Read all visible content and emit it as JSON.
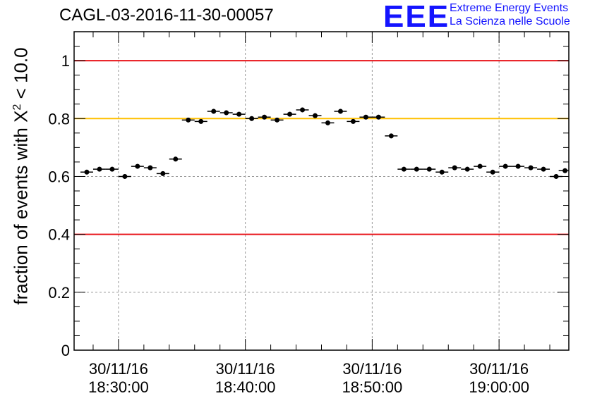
{
  "title": "CAGL-03-2016-11-30-00057",
  "logo": {
    "mark": "EEE",
    "line1": "Extreme Energy Events",
    "line2": "La Scienza nelle Scuole",
    "color": "#1414ff"
  },
  "axis": {
    "ylabel_prefix": "fraction of events with X",
    "ylabel_sup": "2",
    "ylabel_suffix": " < 10.0",
    "y_ticks": [
      "0",
      "0.2",
      "0.4",
      "0.6",
      "0.8",
      "1"
    ],
    "x_ticks": [
      {
        "date": "30/11/16",
        "time": "18:30:00"
      },
      {
        "date": "30/11/16",
        "time": "18:40:00"
      },
      {
        "date": "30/11/16",
        "time": "18:50:00"
      },
      {
        "date": "30/11/16",
        "time": "19:00:00"
      }
    ]
  },
  "colors": {
    "limit_red": "#e8141a",
    "limit_yellow": "#ffc000",
    "points": "#000000"
  },
  "chart_data": {
    "type": "scatter",
    "x_unit": "minutes since 18:30:00",
    "xlim": [
      -3.5,
      35.5
    ],
    "ylim": [
      0,
      1.1
    ],
    "grid": true,
    "reference_lines": [
      {
        "y": 1.0,
        "color": "red"
      },
      {
        "y": 0.8,
        "color": "yellow"
      },
      {
        "y": 0.4,
        "color": "red"
      }
    ],
    "x": [
      -2.5,
      -1.5,
      -0.5,
      0.5,
      1.5,
      2.5,
      3.5,
      4.5,
      5.5,
      6.5,
      7.5,
      8.5,
      9.5,
      10.5,
      11.5,
      12.5,
      13.5,
      14.5,
      15.5,
      16.5,
      17.5,
      18.5,
      19.5,
      20.5,
      21.5,
      22.5,
      23.5,
      24.5,
      25.5,
      26.5,
      27.5,
      28.5,
      29.5,
      30.5,
      31.5,
      32.5,
      33.5,
      34.5,
      35.2
    ],
    "y": [
      0.615,
      0.625,
      0.625,
      0.6,
      0.635,
      0.63,
      0.61,
      0.66,
      0.795,
      0.79,
      0.825,
      0.82,
      0.815,
      0.8,
      0.805,
      0.795,
      0.815,
      0.83,
      0.81,
      0.785,
      0.825,
      0.79,
      0.805,
      0.805,
      0.74,
      0.625,
      0.625,
      0.625,
      0.615,
      0.63,
      0.625,
      0.635,
      0.615,
      0.635,
      0.635,
      0.63,
      0.625,
      0.6,
      0.62
    ],
    "yerr": 0.008
  }
}
